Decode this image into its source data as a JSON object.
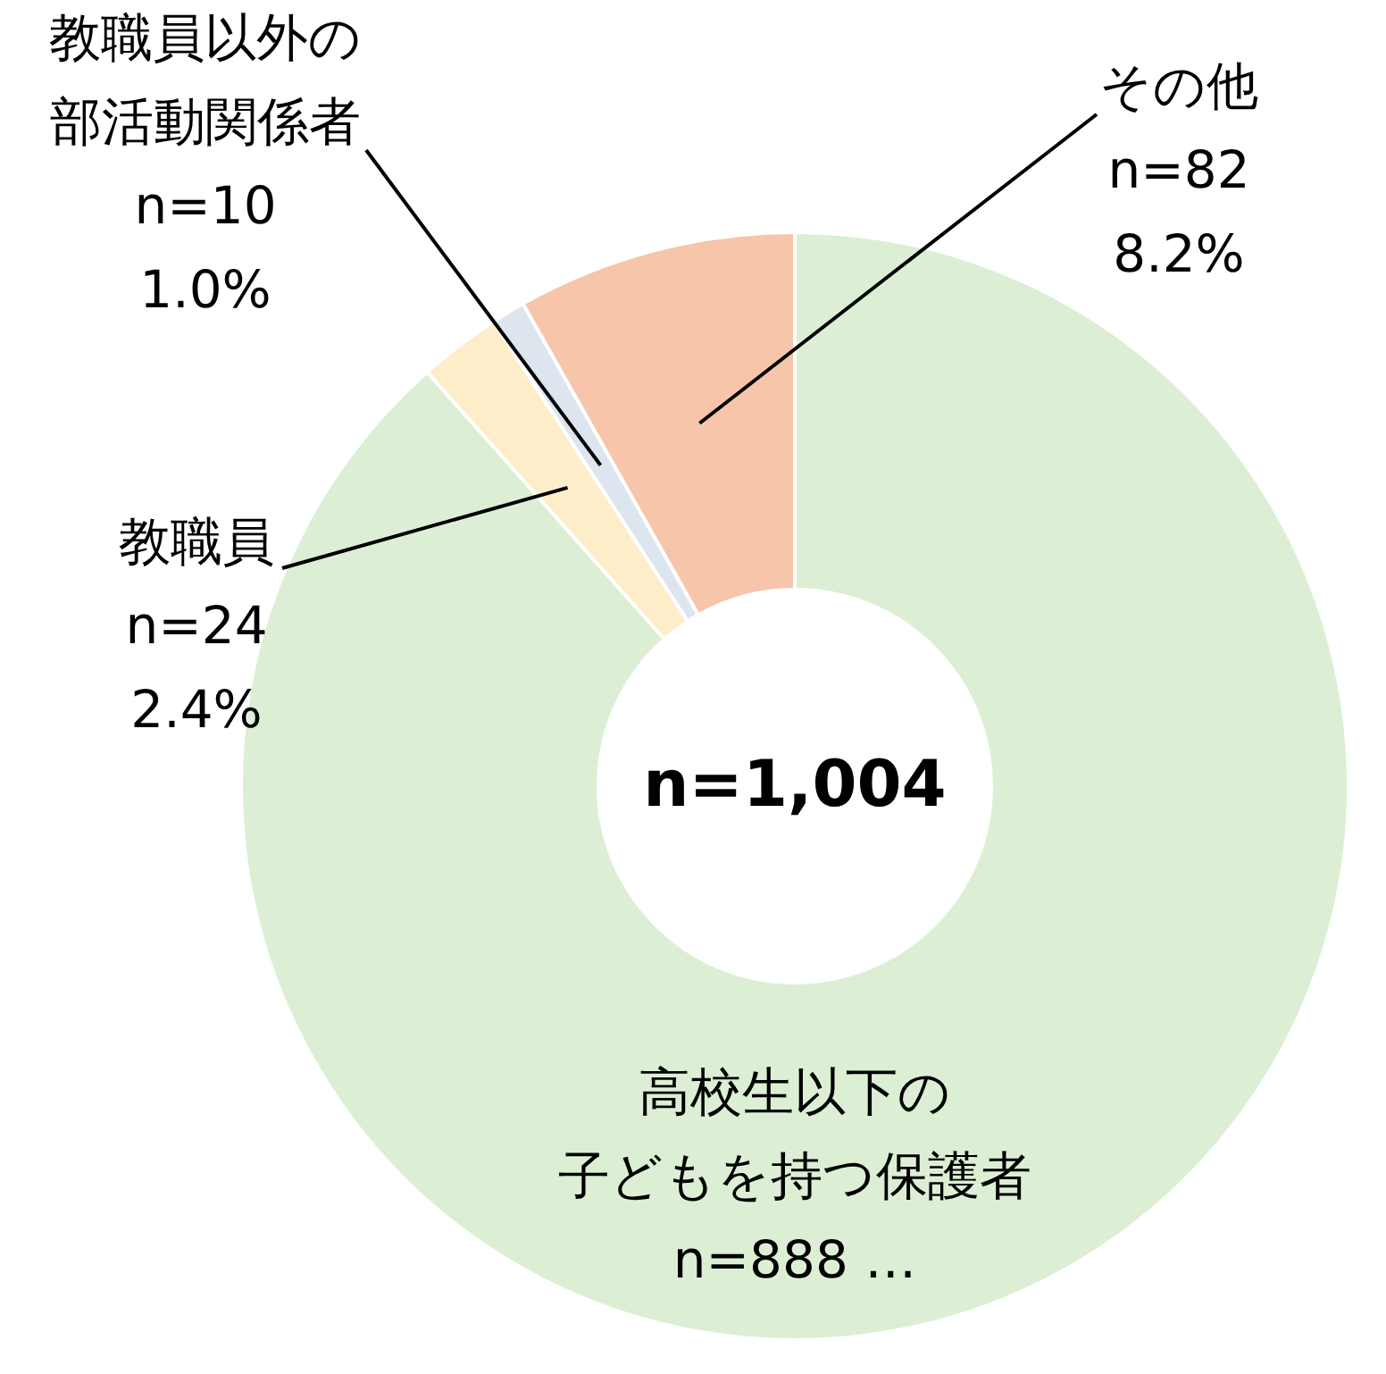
{
  "chart_data": {
    "type": "donut",
    "categories": [
      "高校生以下の子どもを持つ保護者",
      "教職員",
      "教職員以外の部活動関係者",
      "その他"
    ],
    "values": [
      888,
      24,
      10,
      82
    ],
    "value_labels": [
      "n=888 …",
      "n=24\n2.4%",
      "n=10\n1.0%",
      "n=82\n8.2%"
    ],
    "colors": [
      "#dcefd5",
      "#fdedc8",
      "#dde5ef",
      "#f6c5aa"
    ],
    "annotations": [
      "n=1,004"
    ]
  }
}
